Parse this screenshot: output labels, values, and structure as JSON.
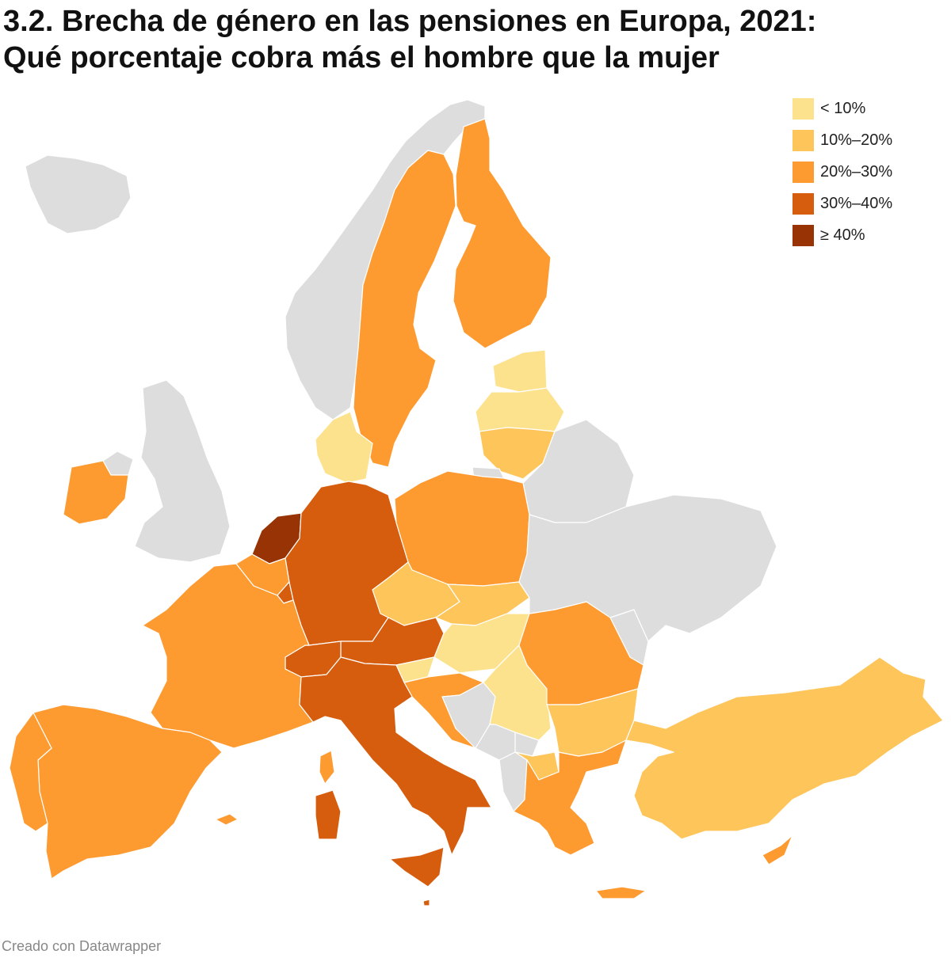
{
  "title": {
    "line1": "3.2. Brecha de género en las pensiones en Europa, 2021:",
    "line2": "Qué porcentaje cobra más el hombre que la mujer"
  },
  "legend": [
    {
      "label": "< 10%",
      "color": "#fde28e"
    },
    {
      "label": "10%–20%",
      "color": "#fec55a"
    },
    {
      "label": "20%–30%",
      "color": "#fd9a30"
    },
    {
      "label": "30%–40%",
      "color": "#d65d0e"
    },
    {
      "label": "≥ 40%",
      "color": "#973304"
    }
  ],
  "no_data_color": "#dddddd",
  "countries": [
    {
      "name": "Países Bajos",
      "bin": 4
    },
    {
      "name": "Alemania",
      "bin": 3
    },
    {
      "name": "Austria",
      "bin": 3
    },
    {
      "name": "Italia",
      "bin": 3
    },
    {
      "name": "Suiza",
      "bin": 3
    },
    {
      "name": "Luxemburgo",
      "bin": 3
    },
    {
      "name": "Malta",
      "bin": 3
    },
    {
      "name": "Suecia",
      "bin": 2
    },
    {
      "name": "Finlandia",
      "bin": 2
    },
    {
      "name": "Irlanda",
      "bin": 2
    },
    {
      "name": "Francia",
      "bin": 2
    },
    {
      "name": "España",
      "bin": 2
    },
    {
      "name": "Portugal",
      "bin": 2
    },
    {
      "name": "Bélgica",
      "bin": 2
    },
    {
      "name": "Polonia",
      "bin": 2
    },
    {
      "name": "Rumanía",
      "bin": 2
    },
    {
      "name": "Croacia",
      "bin": 2
    },
    {
      "name": "Grecia",
      "bin": 2
    },
    {
      "name": "Chipre",
      "bin": 2
    },
    {
      "name": "Chequia",
      "bin": 1
    },
    {
      "name": "Eslovaquia",
      "bin": 1
    },
    {
      "name": "Lituania",
      "bin": 1
    },
    {
      "name": "Bulgaria",
      "bin": 1
    },
    {
      "name": "Turquía",
      "bin": 1
    },
    {
      "name": "Macedonia del Norte",
      "bin": 1
    },
    {
      "name": "Dinamarca",
      "bin": 0
    },
    {
      "name": "Estonia",
      "bin": 0
    },
    {
      "name": "Letonia",
      "bin": 0
    },
    {
      "name": "Hungría",
      "bin": 0
    },
    {
      "name": "Eslovenia",
      "bin": 0
    },
    {
      "name": "Serbia",
      "bin": 0
    },
    {
      "name": "Islandia",
      "bin": null
    },
    {
      "name": "Noruega",
      "bin": null
    },
    {
      "name": "Reino Unido",
      "bin": null
    },
    {
      "name": "Irlanda del Norte",
      "bin": null
    },
    {
      "name": "Bielorrusia",
      "bin": null
    },
    {
      "name": "Ucrania",
      "bin": null
    },
    {
      "name": "Moldavia",
      "bin": null
    },
    {
      "name": "Bosnia y Herzegovina",
      "bin": null
    },
    {
      "name": "Montenegro",
      "bin": null
    },
    {
      "name": "Kosovo",
      "bin": null
    },
    {
      "name": "Albania",
      "bin": null
    },
    {
      "name": "Kaliningrado",
      "bin": null
    }
  ],
  "footer": "Creado con Datawrapper"
}
